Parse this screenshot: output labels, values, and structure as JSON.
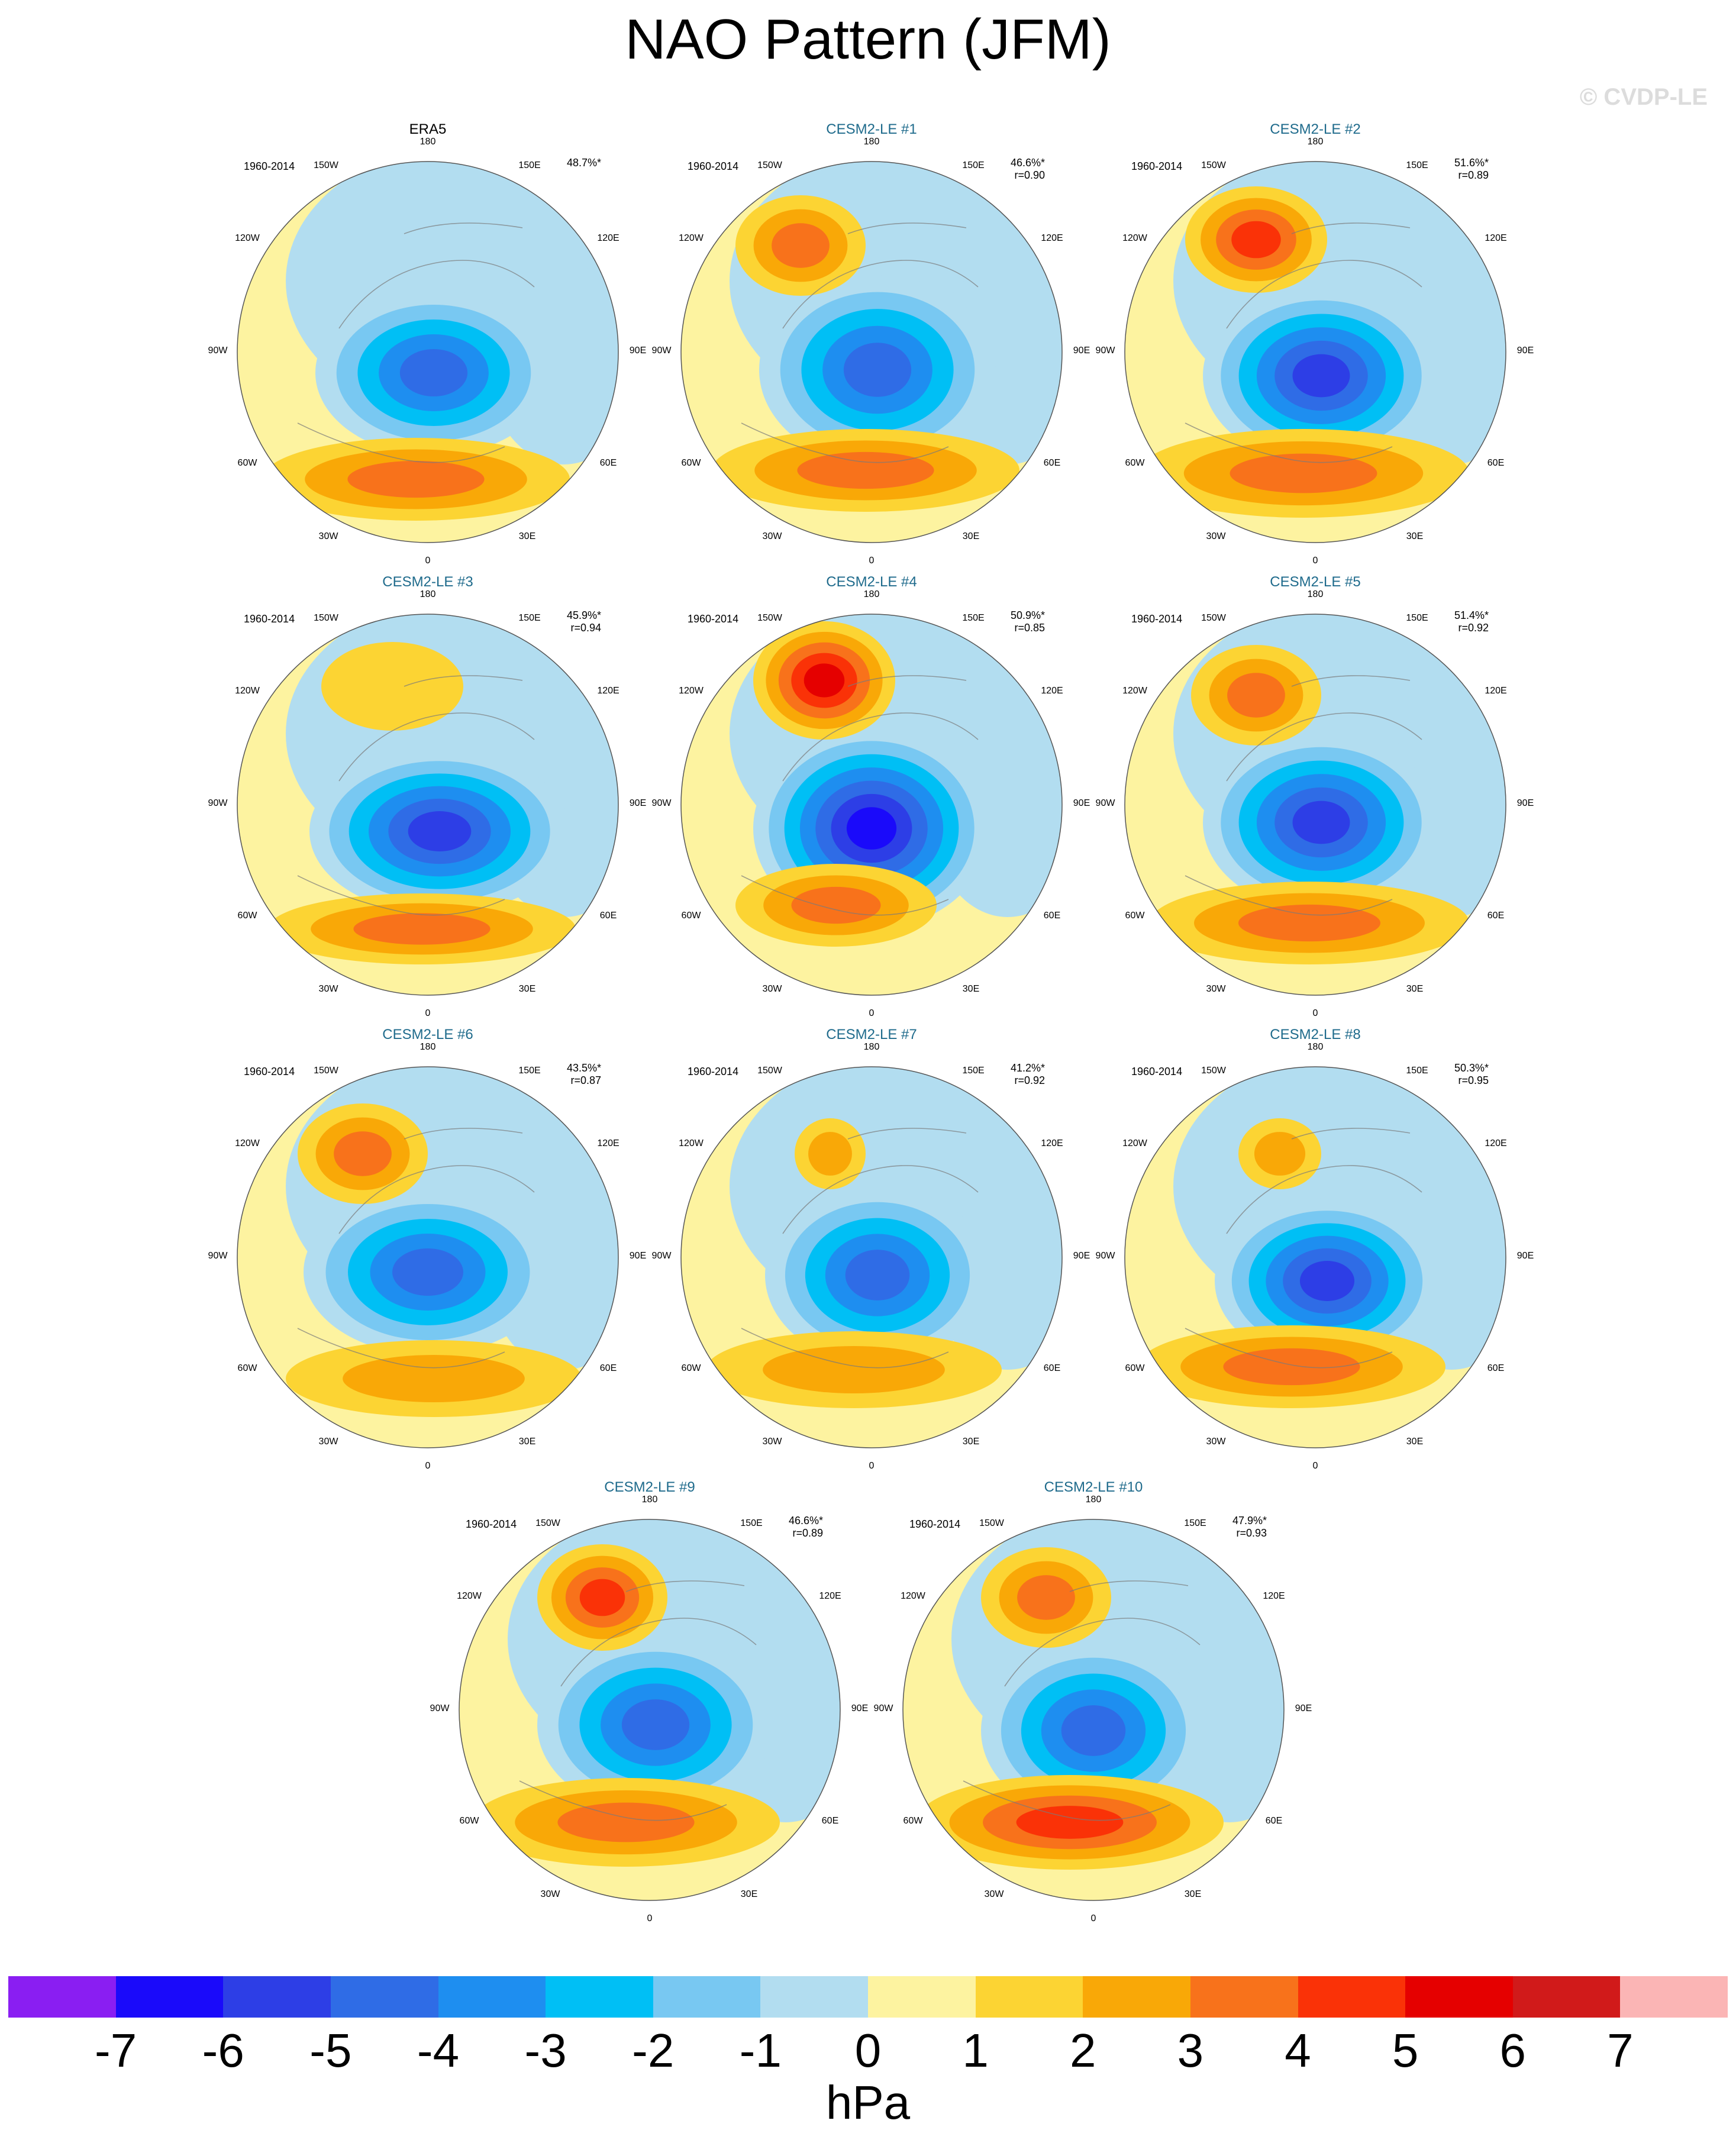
{
  "title": "NAO Pattern (JFM)",
  "watermark": "© CVDP-LE",
  "lon_labels": {
    "n": "180",
    "nnw": "150W",
    "nne": "150E",
    "wnw": "120W",
    "ene": "120E",
    "w": "90W",
    "e": "90E",
    "wsw": "60W",
    "ese": "60E",
    "ssw": "30W",
    "sse": "30E",
    "s": "0"
  },
  "panels": [
    {
      "title": "ERA5",
      "observed": true,
      "period": "1960-2014",
      "pct": "48.7%*",
      "r": ""
    },
    {
      "title": "CESM2-LE #1",
      "observed": false,
      "period": "1960-2014",
      "pct": "46.6%*",
      "r": "r=0.90"
    },
    {
      "title": "CESM2-LE #2",
      "observed": false,
      "period": "1960-2014",
      "pct": "51.6%*",
      "r": "r=0.89"
    },
    {
      "title": "CESM2-LE #3",
      "observed": false,
      "period": "1960-2014",
      "pct": "45.9%*",
      "r": "r=0.94"
    },
    {
      "title": "CESM2-LE #4",
      "observed": false,
      "period": "1960-2014",
      "pct": "50.9%*",
      "r": "r=0.85"
    },
    {
      "title": "CESM2-LE #5",
      "observed": false,
      "period": "1960-2014",
      "pct": "51.4%*",
      "r": "r=0.92"
    },
    {
      "title": "CESM2-LE #6",
      "observed": false,
      "period": "1960-2014",
      "pct": "43.5%*",
      "r": "r=0.87"
    },
    {
      "title": "CESM2-LE #7",
      "observed": false,
      "period": "1960-2014",
      "pct": "41.2%*",
      "r": "r=0.92"
    },
    {
      "title": "CESM2-LE #8",
      "observed": false,
      "period": "1960-2014",
      "pct": "50.3%*",
      "r": "r=0.95"
    },
    {
      "title": "CESM2-LE #9",
      "observed": false,
      "period": "1960-2014",
      "pct": "46.6%*",
      "r": "r=0.89"
    },
    {
      "title": "CESM2-LE #10",
      "observed": false,
      "period": "1960-2014",
      "pct": "47.9%*",
      "r": "r=0.93"
    }
  ],
  "colorbar": {
    "units": "hPa",
    "ticks": [
      "-7",
      "-6",
      "-5",
      "-4",
      "-3",
      "-2",
      "-1",
      "0",
      "1",
      "2",
      "3",
      "4",
      "5",
      "6",
      "7"
    ],
    "colors": [
      "#8a1ef2",
      "#1a0afa",
      "#2d3ee6",
      "#2f6ce6",
      "#1e8ef0",
      "#00bff5",
      "#78c8f2",
      "#b2ddf0",
      "#fdf3a0",
      "#fcd433",
      "#f9a807",
      "#f8721b",
      "#fa3207",
      "#e50000",
      "#d11a1a",
      "#fbb5b5"
    ]
  }
}
